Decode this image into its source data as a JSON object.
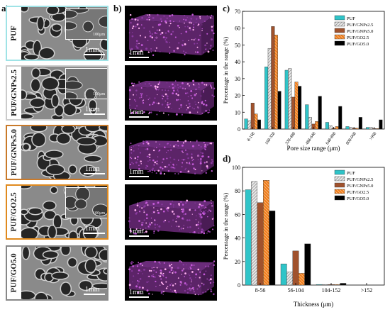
{
  "panel_labels": {
    "a": "a)",
    "b": "b)",
    "c": "c)",
    "d": "d)"
  },
  "sem_panels": [
    {
      "sample": "PUF",
      "scale": "1mm",
      "inset_scale": "100μm",
      "has_inset": true,
      "border_color": "#9fe3e6"
    },
    {
      "sample": "PUF/GNPs2.5",
      "scale": "1mm",
      "inset_scale": "100μm",
      "has_inset": true,
      "border_color": "#cccccc"
    },
    {
      "sample": "PUF/GNPs5.0",
      "scale": "1mm",
      "inset_scale": "",
      "has_inset": false,
      "border_color": "#c97a2a"
    },
    {
      "sample": "PUF/GO2.5",
      "scale": "1mm",
      "inset_scale": "100μm",
      "has_inset": true,
      "border_color": "#e08a1e"
    },
    {
      "sample": "PUF/GO5.0",
      "scale": "1mm",
      "inset_scale": "",
      "has_inset": false,
      "border_color": "#888888"
    }
  ],
  "ct_panels": [
    {
      "scale": "1mm"
    },
    {
      "scale": "1mm"
    },
    {
      "scale": "1mm"
    },
    {
      "scale": "1mm"
    },
    {
      "scale": "1mm"
    }
  ],
  "colors": {
    "PUF": "#2fc4c8",
    "PUF/GNPs2.5": "#b8b8b8",
    "PUF/GNPs5.0": "#a0522d",
    "PUF/GO2.5": "#f07d1a",
    "PUF/GO5.0": "#000000"
  },
  "chart_data": [
    {
      "type": "bar",
      "panel": "c",
      "categories": [
        "8-168",
        "168-328",
        "328-488",
        "488-648",
        "648-808",
        "808-968",
        ">968"
      ],
      "series": [
        {
          "name": "PUF",
          "values": [
            6,
            37,
            35,
            14.5,
            4,
            1.5,
            1
          ]
        },
        {
          "name": "PUF/GNPs2.5",
          "values": [
            5,
            48,
            36,
            7,
            2,
            1,
            1
          ]
        },
        {
          "name": "PUF/GNPs5.0",
          "values": [
            15.5,
            61,
            19,
            3,
            0.5,
            0.5,
            0.3
          ]
        },
        {
          "name": "PUF/GO2.5",
          "values": [
            9,
            56,
            28,
            4.5,
            1.5,
            0.5,
            0.3
          ]
        },
        {
          "name": "PUF/GO5.0",
          "values": [
            5.5,
            22.5,
            25.5,
            19.5,
            13.5,
            7,
            5.5
          ]
        }
      ],
      "xlabel": "Pore size range (μm)",
      "ylabel": "Percentage in the range (%)",
      "ylim": [
        0,
        70
      ],
      "yticks": [
        0,
        10,
        20,
        30,
        40,
        50,
        60,
        70
      ],
      "legend": "top-right",
      "grid": false
    },
    {
      "type": "bar",
      "panel": "d",
      "categories": [
        "8-56",
        "56-104",
        "104-152",
        ">152"
      ],
      "series": [
        {
          "name": "PUF",
          "values": [
            81,
            18,
            0.5,
            0
          ]
        },
        {
          "name": "PUF/GNPs2.5",
          "values": [
            88,
            11,
            0.5,
            0
          ]
        },
        {
          "name": "PUF/GNPs5.0",
          "values": [
            70,
            29,
            0.5,
            0
          ]
        },
        {
          "name": "PUF/GO2.5",
          "values": [
            89,
            10,
            0.5,
            0
          ]
        },
        {
          "name": "PUF/GO5.0",
          "values": [
            63,
            35,
            1.5,
            0
          ]
        }
      ],
      "xlabel": "Thickness (μm)",
      "ylabel": "Percentage in the range (%)",
      "ylim": [
        0,
        100
      ],
      "yticks": [
        0,
        20,
        40,
        60,
        80,
        100
      ],
      "legend": "top-right",
      "grid": false
    }
  ]
}
